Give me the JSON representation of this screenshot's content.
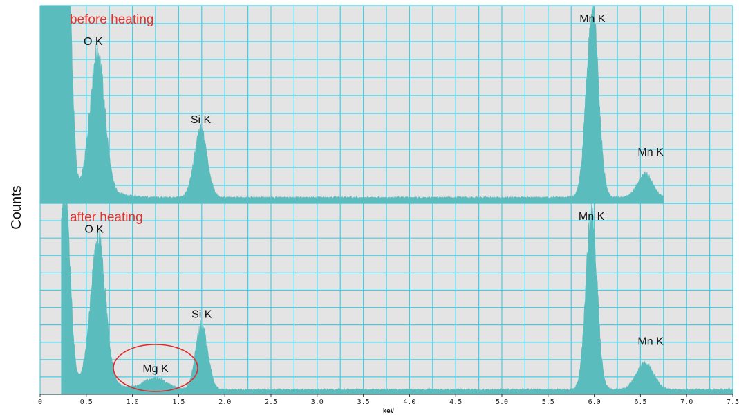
{
  "chart_data": {
    "type": "area",
    "ylabel": "Counts",
    "xlabel": "keV",
    "xlim": [
      0,
      7.5
    ],
    "x_ticks": [
      "0",
      "0.5",
      "1.0",
      "1.5",
      "2.0",
      "2.5",
      "3.0",
      "3.5",
      "4.0",
      "4.5",
      "5.0",
      "5.5",
      "6.0",
      "6.5",
      "7.0",
      "7.5"
    ],
    "grid": true,
    "grid_x_step": 0.25,
    "grid_rows_per_panel": 11,
    "colors": {
      "fill": "#5bbcbe",
      "grid": "#3fd0e6",
      "plot_bg": "#e4e4e4",
      "condition_label": "#e8302a",
      "highlight": "#dd2b2b"
    },
    "panels": [
      {
        "condition": "before heating",
        "x_start": 0,
        "x_end": 6.75,
        "background": 0.03,
        "low_energy_peak": {
          "x": 0.25,
          "sigma": 0.045,
          "height": 1.15,
          "plateau_end": 0.3
        },
        "peaks": [
          {
            "label": "O K",
            "x": 0.62,
            "sigma": 0.08,
            "height": 0.71
          },
          {
            "label": "Si K",
            "x": 1.74,
            "sigma": 0.07,
            "height": 0.34
          },
          {
            "label": "Mn K",
            "x": 5.98,
            "sigma": 0.065,
            "height": 0.95
          },
          {
            "label": "Mn K",
            "x": 6.55,
            "sigma": 0.08,
            "height": 0.12
          }
        ]
      },
      {
        "condition": "after heating",
        "x_start": 0.23,
        "x_end": 7.5,
        "background": 0.025,
        "low_energy_peak": {
          "x": 0.27,
          "sigma": 0.05,
          "height": 0.93,
          "plateau_end": 0.28
        },
        "peaks": [
          {
            "label": "O K",
            "x": 0.63,
            "sigma": 0.08,
            "height": 0.76
          },
          {
            "label": "Mg K",
            "x": 1.25,
            "sigma": 0.12,
            "height": 0.06,
            "highlighted": true
          },
          {
            "label": "Si K",
            "x": 1.75,
            "sigma": 0.065,
            "height": 0.34
          },
          {
            "label": "Mn K",
            "x": 5.97,
            "sigma": 0.06,
            "height": 0.94
          },
          {
            "label": "Mn K",
            "x": 6.55,
            "sigma": 0.09,
            "height": 0.14
          }
        ]
      }
    ]
  }
}
